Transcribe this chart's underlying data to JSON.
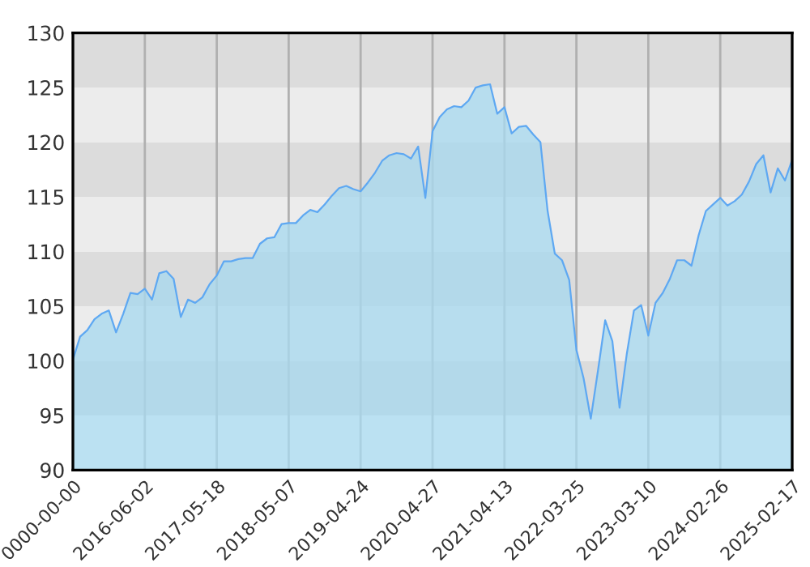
{
  "chart_data": {
    "type": "area",
    "ylim": [
      90,
      130
    ],
    "yticks": [
      90,
      95,
      100,
      105,
      110,
      115,
      120,
      125,
      130
    ],
    "categories": [
      "0000-00-00",
      null,
      null,
      null,
      null,
      null,
      null,
      null,
      null,
      null,
      "2016-06-02",
      null,
      null,
      null,
      null,
      null,
      null,
      null,
      null,
      null,
      "2017-05-18",
      null,
      null,
      null,
      null,
      null,
      null,
      null,
      null,
      null,
      "2018-05-07",
      null,
      null,
      null,
      null,
      null,
      null,
      null,
      null,
      null,
      "2019-04-24",
      null,
      null,
      null,
      null,
      null,
      null,
      null,
      null,
      null,
      "2020-04-27",
      null,
      null,
      null,
      null,
      null,
      null,
      null,
      null,
      null,
      "2021-04-13",
      null,
      null,
      null,
      null,
      null,
      null,
      null,
      null,
      null,
      "2022-03-25",
      null,
      null,
      null,
      null,
      null,
      null,
      null,
      null,
      null,
      "2023-03-10",
      null,
      null,
      null,
      null,
      null,
      null,
      null,
      null,
      null,
      "2024-02-26",
      null,
      null,
      null,
      null,
      null,
      null,
      null,
      null,
      null,
      "2025-02-17"
    ],
    "grid": "x",
    "legend": false,
    "bands": [
      {
        "axis": "y",
        "from": 95,
        "to": 100,
        "color": "#dcdcdc"
      },
      {
        "axis": "y",
        "from": 100,
        "to": 105,
        "color": "#ececec"
      },
      {
        "axis": "y",
        "from": 105,
        "to": 110,
        "color": "#dcdcdc"
      },
      {
        "axis": "y",
        "from": 110,
        "to": 115,
        "color": "#ececec"
      },
      {
        "axis": "y",
        "from": 115,
        "to": 120,
        "color": "#dcdcdc"
      },
      {
        "axis": "y",
        "from": 120,
        "to": 125,
        "color": "#ececec"
      },
      {
        "axis": "y",
        "from": 125,
        "to": 130,
        "color": "#dcdcdc"
      }
    ],
    "series": [
      {
        "color": "#5ea8f2",
        "values": [
          100.1,
          102.2,
          102.8,
          103.8,
          104.3,
          104.6,
          102.6,
          104.3,
          106.2,
          106.1,
          106.6,
          105.6,
          108.0,
          108.2,
          107.5,
          104.0,
          105.6,
          105.3,
          105.8,
          107.0,
          107.8,
          109.1,
          109.1,
          109.3,
          109.4,
          109.4,
          110.7,
          111.2,
          111.3,
          112.5,
          112.6,
          112.6,
          113.3,
          113.8,
          113.6,
          114.3,
          115.1,
          115.8,
          116.0,
          115.7,
          115.5,
          116.3,
          117.2,
          118.3,
          118.8,
          119.0,
          118.9,
          118.5,
          119.6,
          114.9,
          121.0,
          122.3,
          123.0,
          123.3,
          123.2,
          123.8,
          125.0,
          125.2,
          125.3,
          122.6,
          123.2,
          120.8,
          121.4,
          121.5,
          120.7,
          120.0,
          113.7,
          109.8,
          109.2,
          107.4,
          101.0,
          98.4,
          94.7,
          99.1,
          103.7,
          101.8,
          95.7,
          100.6,
          104.6,
          105.1,
          102.3,
          105.3,
          106.2,
          107.5,
          109.2,
          109.2,
          108.7,
          111.5,
          113.7,
          114.3,
          114.9,
          114.2,
          114.6,
          115.2,
          116.4,
          118.0,
          118.8,
          115.4,
          117.6,
          116.5,
          118.4
        ]
      }
    ]
  }
}
